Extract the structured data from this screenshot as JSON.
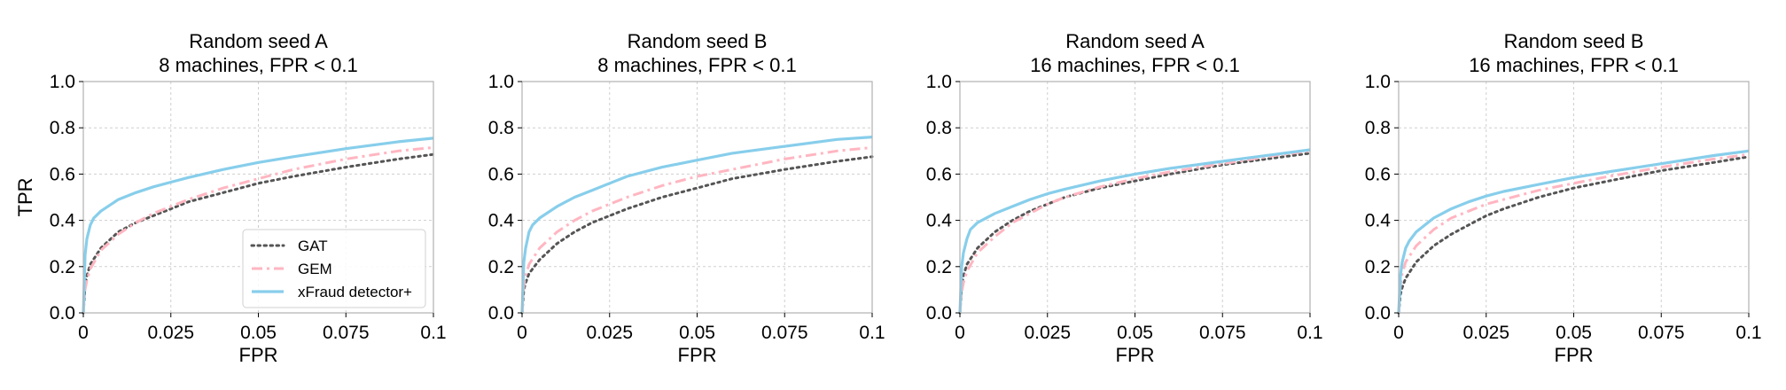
{
  "chart_data": [
    {
      "type": "line",
      "title": [
        "Random seed A",
        "8 machines, FPR < 0.1"
      ],
      "xlabel": "FPR",
      "ylabel": "TPR",
      "xlim": [
        0,
        0.1
      ],
      "ylim": [
        0,
        1.0
      ],
      "xticks": [
        "0",
        "0.025",
        "0.05",
        "0.075",
        "0.1"
      ],
      "yticks": [
        "0.0",
        "0.2",
        "0.4",
        "0.6",
        "0.8",
        "1.0"
      ],
      "grid": true,
      "legend": "lower-right",
      "series": [
        {
          "name": "GAT",
          "color": "#555555",
          "style": "dotted",
          "x": [
            0,
            0.0005,
            0.001,
            0.002,
            0.005,
            0.01,
            0.015,
            0.02,
            0.025,
            0.03,
            0.04,
            0.05,
            0.06,
            0.075,
            0.09,
            0.1
          ],
          "y": [
            0,
            0.12,
            0.16,
            0.21,
            0.28,
            0.35,
            0.39,
            0.42,
            0.45,
            0.48,
            0.52,
            0.56,
            0.59,
            0.63,
            0.665,
            0.685
          ]
        },
        {
          "name": "GEM",
          "color": "#ffb6c1",
          "style": "dashdot",
          "x": [
            0,
            0.0005,
            0.001,
            0.002,
            0.005,
            0.01,
            0.015,
            0.02,
            0.025,
            0.03,
            0.04,
            0.05,
            0.06,
            0.075,
            0.09,
            0.1
          ],
          "y": [
            0,
            0.1,
            0.14,
            0.19,
            0.27,
            0.34,
            0.39,
            0.43,
            0.46,
            0.49,
            0.54,
            0.58,
            0.62,
            0.665,
            0.7,
            0.715
          ]
        },
        {
          "name": "xFraud detector+",
          "color": "#87ceeb",
          "style": "solid",
          "x": [
            0,
            0.0005,
            0.001,
            0.002,
            0.003,
            0.005,
            0.01,
            0.015,
            0.02,
            0.025,
            0.03,
            0.04,
            0.05,
            0.06,
            0.075,
            0.09,
            0.1
          ],
          "y": [
            0,
            0.25,
            0.32,
            0.38,
            0.41,
            0.44,
            0.49,
            0.52,
            0.545,
            0.565,
            0.585,
            0.62,
            0.65,
            0.675,
            0.71,
            0.74,
            0.755
          ]
        }
      ]
    },
    {
      "type": "line",
      "title": [
        "Random seed B",
        "8 machines, FPR < 0.1"
      ],
      "xlabel": "FPR",
      "ylabel": "",
      "xlim": [
        0,
        0.1
      ],
      "ylim": [
        0,
        1.0
      ],
      "xticks": [
        "0",
        "0.025",
        "0.05",
        "0.075",
        "0.1"
      ],
      "yticks": [
        "0.0",
        "0.2",
        "0.4",
        "0.6",
        "0.8",
        "1.0"
      ],
      "grid": true,
      "series": [
        {
          "name": "GAT",
          "color": "#555555",
          "style": "dotted",
          "x": [
            0,
            0.0005,
            0.001,
            0.002,
            0.005,
            0.01,
            0.015,
            0.02,
            0.025,
            0.03,
            0.04,
            0.05,
            0.06,
            0.075,
            0.09,
            0.1
          ],
          "y": [
            0,
            0.1,
            0.13,
            0.17,
            0.23,
            0.3,
            0.35,
            0.39,
            0.42,
            0.45,
            0.5,
            0.54,
            0.58,
            0.62,
            0.655,
            0.675
          ]
        },
        {
          "name": "GEM",
          "color": "#ffb6c1",
          "style": "dashdot",
          "x": [
            0,
            0.0005,
            0.001,
            0.002,
            0.005,
            0.01,
            0.015,
            0.02,
            0.025,
            0.03,
            0.04,
            0.05,
            0.06,
            0.075,
            0.09,
            0.1
          ],
          "y": [
            0,
            0.12,
            0.16,
            0.21,
            0.28,
            0.35,
            0.4,
            0.44,
            0.47,
            0.5,
            0.55,
            0.59,
            0.62,
            0.665,
            0.7,
            0.715
          ]
        },
        {
          "name": "xFraud detector+",
          "color": "#87ceeb",
          "style": "solid",
          "x": [
            0,
            0.0005,
            0.001,
            0.002,
            0.003,
            0.005,
            0.01,
            0.015,
            0.02,
            0.025,
            0.03,
            0.04,
            0.05,
            0.06,
            0.075,
            0.09,
            0.1
          ],
          "y": [
            0,
            0.22,
            0.28,
            0.35,
            0.38,
            0.41,
            0.46,
            0.5,
            0.53,
            0.56,
            0.59,
            0.63,
            0.66,
            0.69,
            0.72,
            0.75,
            0.76
          ]
        }
      ]
    },
    {
      "type": "line",
      "title": [
        "Random seed A",
        "16 machines, FPR < 0.1"
      ],
      "xlabel": "FPR",
      "ylabel": "",
      "xlim": [
        0,
        0.1
      ],
      "ylim": [
        0,
        1.0
      ],
      "xticks": [
        "0",
        "0.025",
        "0.05",
        "0.075",
        "0.1"
      ],
      "yticks": [
        "0.0",
        "0.2",
        "0.4",
        "0.6",
        "0.8",
        "1.0"
      ],
      "grid": true,
      "series": [
        {
          "name": "GAT",
          "color": "#555555",
          "style": "dotted",
          "x": [
            0,
            0.0005,
            0.001,
            0.002,
            0.005,
            0.01,
            0.015,
            0.02,
            0.025,
            0.03,
            0.04,
            0.05,
            0.06,
            0.075,
            0.09,
            0.1
          ],
          "y": [
            0,
            0.12,
            0.16,
            0.21,
            0.28,
            0.35,
            0.4,
            0.44,
            0.47,
            0.5,
            0.54,
            0.57,
            0.6,
            0.64,
            0.67,
            0.69
          ]
        },
        {
          "name": "GEM",
          "color": "#ffb6c1",
          "style": "dashdot",
          "x": [
            0,
            0.0005,
            0.001,
            0.002,
            0.005,
            0.01,
            0.015,
            0.02,
            0.025,
            0.03,
            0.04,
            0.05,
            0.06,
            0.075,
            0.09,
            0.1
          ],
          "y": [
            0,
            0.09,
            0.13,
            0.18,
            0.26,
            0.33,
            0.39,
            0.43,
            0.47,
            0.5,
            0.545,
            0.58,
            0.61,
            0.645,
            0.68,
            0.7
          ]
        },
        {
          "name": "xFraud detector+",
          "color": "#87ceeb",
          "style": "solid",
          "x": [
            0,
            0.0005,
            0.001,
            0.002,
            0.003,
            0.005,
            0.01,
            0.015,
            0.02,
            0.025,
            0.03,
            0.04,
            0.05,
            0.06,
            0.075,
            0.09,
            0.1
          ],
          "y": [
            0,
            0.2,
            0.26,
            0.32,
            0.36,
            0.39,
            0.43,
            0.46,
            0.49,
            0.515,
            0.535,
            0.57,
            0.6,
            0.625,
            0.655,
            0.685,
            0.705
          ]
        }
      ]
    },
    {
      "type": "line",
      "title": [
        "Random seed B",
        "16 machines, FPR < 0.1"
      ],
      "xlabel": "FPR",
      "ylabel": "",
      "xlim": [
        0,
        0.1
      ],
      "ylim": [
        0,
        1.0
      ],
      "xticks": [
        "0",
        "0.025",
        "0.05",
        "0.075",
        "0.1"
      ],
      "yticks": [
        "0.0",
        "0.2",
        "0.4",
        "0.6",
        "0.8",
        "1.0"
      ],
      "grid": true,
      "series": [
        {
          "name": "GAT",
          "color": "#555555",
          "style": "dotted",
          "x": [
            0,
            0.0005,
            0.001,
            0.002,
            0.005,
            0.01,
            0.015,
            0.02,
            0.025,
            0.03,
            0.04,
            0.05,
            0.06,
            0.075,
            0.09,
            0.1
          ],
          "y": [
            0,
            0.08,
            0.11,
            0.15,
            0.22,
            0.29,
            0.34,
            0.38,
            0.42,
            0.45,
            0.5,
            0.54,
            0.57,
            0.615,
            0.65,
            0.675
          ]
        },
        {
          "name": "GEM",
          "color": "#ffb6c1",
          "style": "dashdot",
          "x": [
            0,
            0.0005,
            0.001,
            0.002,
            0.005,
            0.01,
            0.015,
            0.02,
            0.025,
            0.03,
            0.04,
            0.05,
            0.06,
            0.075,
            0.09,
            0.1
          ],
          "y": [
            0,
            0.12,
            0.17,
            0.22,
            0.29,
            0.36,
            0.41,
            0.44,
            0.47,
            0.49,
            0.53,
            0.56,
            0.59,
            0.63,
            0.665,
            0.685
          ]
        },
        {
          "name": "xFraud detector+",
          "color": "#87ceeb",
          "style": "solid",
          "x": [
            0,
            0.0005,
            0.001,
            0.002,
            0.003,
            0.005,
            0.01,
            0.015,
            0.02,
            0.025,
            0.03,
            0.04,
            0.05,
            0.06,
            0.075,
            0.09,
            0.1
          ],
          "y": [
            0,
            0.16,
            0.22,
            0.28,
            0.31,
            0.35,
            0.41,
            0.45,
            0.48,
            0.505,
            0.525,
            0.555,
            0.585,
            0.61,
            0.645,
            0.68,
            0.7
          ]
        }
      ]
    }
  ]
}
